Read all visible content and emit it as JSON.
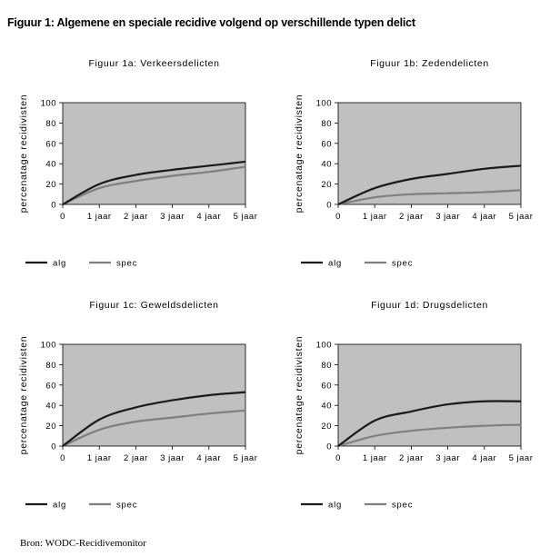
{
  "title": "Figuur 1: Algemene en speciale recidive volgend op verschillende typen delict",
  "source": "Bron: WODC-Recidivemonitor",
  "colors": {
    "plot_bg": "#c0c0c0",
    "alg": "#1a1a1a",
    "spec": "#7f7f7f"
  },
  "chart_data": [
    {
      "type": "line",
      "title": "Figuur 1a: Verkeersdelicten",
      "ylabel": "percenatage recidivisten",
      "xlabel": "",
      "x": [
        0,
        1,
        2,
        3,
        4,
        5
      ],
      "xticklabels": [
        "0",
        "1 jaar",
        "2 jaar",
        "3 jaar",
        "4 jaar",
        "5 jaar"
      ],
      "yticks": [
        0,
        20,
        40,
        60,
        80,
        100
      ],
      "ylim": [
        0,
        100
      ],
      "grid": false,
      "legend": "bottom",
      "series": [
        {
          "name": "alg",
          "values": [
            0,
            20,
            29,
            34,
            38,
            42
          ]
        },
        {
          "name": "spec",
          "values": [
            0,
            16,
            23,
            28,
            32,
            37
          ]
        }
      ]
    },
    {
      "type": "line",
      "title": "Figuur 1b: Zedendelicten",
      "ylabel": "percenatage recidivisten",
      "xlabel": "",
      "x": [
        0,
        1,
        2,
        3,
        4,
        5
      ],
      "xticklabels": [
        "0",
        "1 jaar",
        "2 jaar",
        "3 jaar",
        "4 jaar",
        "5 jaar"
      ],
      "yticks": [
        0,
        20,
        40,
        60,
        80,
        100
      ],
      "ylim": [
        0,
        100
      ],
      "grid": false,
      "legend": "bottom",
      "series": [
        {
          "name": "alg",
          "values": [
            0,
            16,
            25,
            30,
            35,
            38
          ]
        },
        {
          "name": "spec",
          "values": [
            0,
            7,
            10,
            11,
            12,
            14
          ]
        }
      ]
    },
    {
      "type": "line",
      "title": "Figuur 1c: Geweldsdelicten",
      "ylabel": "percenatage recidivisten",
      "xlabel": "",
      "x": [
        0,
        1,
        2,
        3,
        4,
        5
      ],
      "xticklabels": [
        "0",
        "1 jaar",
        "2 jaar",
        "3 jaar",
        "4 jaar",
        "5 jaar"
      ],
      "yticks": [
        0,
        20,
        40,
        60,
        80,
        100
      ],
      "ylim": [
        0,
        100
      ],
      "grid": false,
      "legend": "bottom",
      "series": [
        {
          "name": "alg",
          "values": [
            0,
            26,
            38,
            45,
            50,
            53
          ]
        },
        {
          "name": "spec",
          "values": [
            0,
            16,
            24,
            28,
            32,
            35
          ]
        }
      ]
    },
    {
      "type": "line",
      "title": "Figuur 1d: Drugsdelicten",
      "ylabel": "percenatage recidivisten",
      "xlabel": "",
      "x": [
        0,
        1,
        2,
        3,
        4,
        5
      ],
      "xticklabels": [
        "0",
        "1 jaar",
        "2 jaar",
        "3 jaar",
        "4 jaar",
        "5 jaar"
      ],
      "yticks": [
        0,
        20,
        40,
        60,
        80,
        100
      ],
      "ylim": [
        0,
        100
      ],
      "grid": false,
      "legend": "bottom",
      "series": [
        {
          "name": "alg",
          "values": [
            0,
            25,
            34,
            41,
            44,
            44
          ]
        },
        {
          "name": "spec",
          "values": [
            0,
            10,
            15,
            18,
            20,
            21
          ]
        }
      ]
    }
  ]
}
